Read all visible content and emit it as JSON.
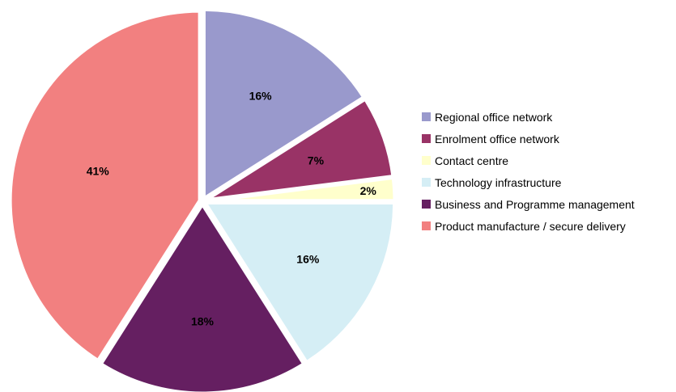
{
  "chart_data": {
    "type": "pie",
    "title": "",
    "legend_position": "right",
    "slices": [
      {
        "name": "Regional office network",
        "value": 16,
        "label": "16%",
        "color": "#9999cc"
      },
      {
        "name": "Enrolment office network",
        "value": 7,
        "label": "7%",
        "color": "#993366"
      },
      {
        "name": "Contact centre",
        "value": 2,
        "label": "2%",
        "color": "#ffffcc"
      },
      {
        "name": "Technology infrastructure",
        "value": 16,
        "label": "16%",
        "color": "#d5eef5"
      },
      {
        "name": "Business and Programme management",
        "value": 18,
        "label": "18%",
        "color": "#651f61"
      },
      {
        "name": "Product manufacture / secure delivery",
        "value": 41,
        "label": "41%",
        "color": "#f28080"
      }
    ]
  }
}
